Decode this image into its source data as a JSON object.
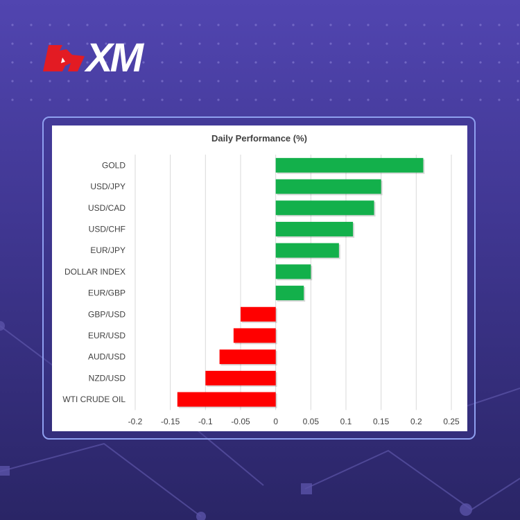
{
  "logo": {
    "text": "XM",
    "accent": "#e31b23"
  },
  "colors": {
    "positive": "#13b04b",
    "negative": "#ff0000",
    "grid": "#d9d9d9",
    "frame": "#8fa0f0"
  },
  "chart_data": {
    "type": "bar",
    "orientation": "horizontal",
    "title": "Daily Performance (%)",
    "categories": [
      "GOLD",
      "USD/JPY",
      "USD/CAD",
      "USD/CHF",
      "EUR/JPY",
      "DOLLAR INDEX",
      "EUR/GBP",
      "GBP/USD",
      "EUR/USD",
      "AUD/USD",
      "NZD/USD",
      "WTI CRUDE OIL"
    ],
    "values": [
      0.21,
      0.15,
      0.14,
      0.11,
      0.09,
      0.05,
      0.04,
      -0.05,
      -0.06,
      -0.08,
      -0.1,
      -0.14
    ],
    "xlim": [
      -0.2,
      0.25
    ],
    "xticks": [
      "-0.2",
      "-0.15",
      "-0.1",
      "-0.05",
      "0",
      "0.05",
      "0.1",
      "0.15",
      "0.2",
      "0.25"
    ],
    "grid": "vertical",
    "legend": "none"
  }
}
